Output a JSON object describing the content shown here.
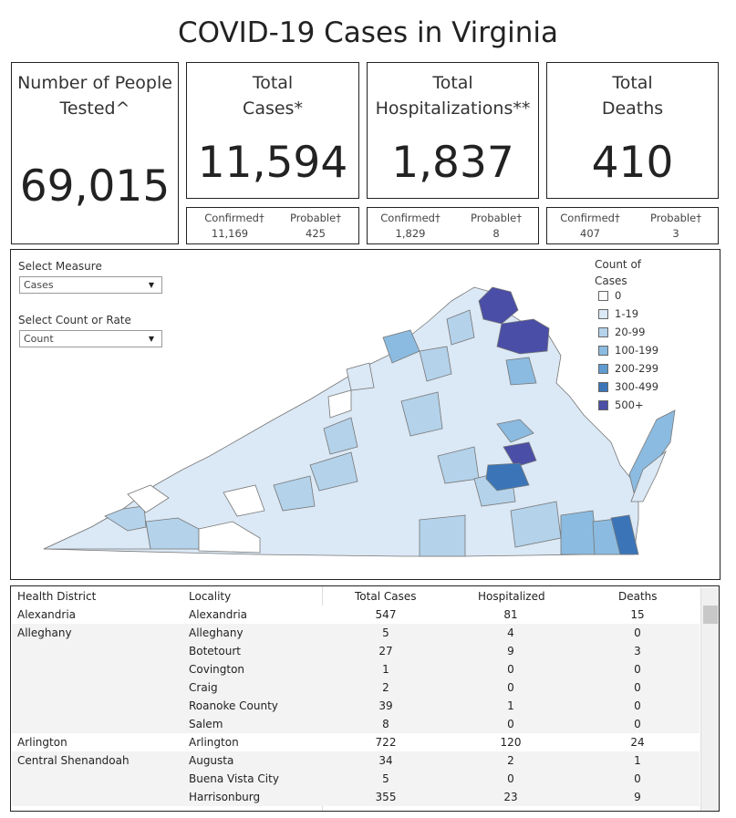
{
  "title": "COVID-19 Cases in Virginia",
  "cards": {
    "tested": {
      "label_line1": "Number of People",
      "label_line2": "Tested^",
      "value": "69,015"
    },
    "cases": {
      "label_line1": "Total",
      "label_line2": "Cases*",
      "value": "11,594",
      "confirmed_label": "Confirmed†",
      "probable_label": "Probable†",
      "confirmed": "11,169",
      "probable": "425"
    },
    "hospitalizations": {
      "label_line1": "Total",
      "label_line2": "Hospitalizations**",
      "value": "1,837",
      "confirmed_label": "Confirmed†",
      "probable_label": "Probable†",
      "confirmed": "1,829",
      "probable": "8"
    },
    "deaths": {
      "label_line1": "Total",
      "label_line2": "Deaths",
      "value": "410",
      "confirmed_label": "Confirmed†",
      "probable_label": "Probable†",
      "confirmed": "407",
      "probable": "3"
    }
  },
  "controls": {
    "measure_label": "Select Measure",
    "measure_value": "Cases",
    "rate_label": "Select Count or Rate",
    "rate_value": "Count"
  },
  "legend": {
    "title_line1": "Count of",
    "title_line2": "Cases",
    "items": [
      {
        "label": "0",
        "color": "#ffffff"
      },
      {
        "label": "1-19",
        "color": "#dbe8f5"
      },
      {
        "label": "20-99",
        "color": "#b4d2ea"
      },
      {
        "label": "100-199",
        "color": "#8bbbe0"
      },
      {
        "label": "200-299",
        "color": "#5f9bd0"
      },
      {
        "label": "300-499",
        "color": "#3b75b8"
      },
      {
        "label": "500+",
        "color": "#4a4ea6"
      }
    ]
  },
  "table": {
    "headers": [
      "Health District",
      "Locality",
      "Total Cases",
      "Hospitalized",
      "Deaths"
    ],
    "rows": [
      {
        "district": "Alexandria",
        "locality": "Alexandria",
        "cases": "547",
        "hosp": "81",
        "deaths": "15",
        "shade": false
      },
      {
        "district": "Alleghany",
        "locality": "Alleghany",
        "cases": "5",
        "hosp": "4",
        "deaths": "0",
        "shade": true
      },
      {
        "district": "",
        "locality": "Botetourt",
        "cases": "27",
        "hosp": "9",
        "deaths": "3",
        "shade": true
      },
      {
        "district": "",
        "locality": "Covington",
        "cases": "1",
        "hosp": "0",
        "deaths": "0",
        "shade": true
      },
      {
        "district": "",
        "locality": "Craig",
        "cases": "2",
        "hosp": "0",
        "deaths": "0",
        "shade": true
      },
      {
        "district": "",
        "locality": "Roanoke County",
        "cases": "39",
        "hosp": "1",
        "deaths": "0",
        "shade": true
      },
      {
        "district": "",
        "locality": "Salem",
        "cases": "8",
        "hosp": "0",
        "deaths": "0",
        "shade": true
      },
      {
        "district": "Arlington",
        "locality": "Arlington",
        "cases": "722",
        "hosp": "120",
        "deaths": "24",
        "shade": false
      },
      {
        "district": "Central Shenandoah",
        "locality": "Augusta",
        "cases": "34",
        "hosp": "2",
        "deaths": "1",
        "shade": true
      },
      {
        "district": "",
        "locality": "Buena Vista City",
        "cases": "5",
        "hosp": "0",
        "deaths": "0",
        "shade": true
      },
      {
        "district": "",
        "locality": "Harrisonburg",
        "cases": "355",
        "hosp": "23",
        "deaths": "9",
        "shade": true
      }
    ]
  }
}
